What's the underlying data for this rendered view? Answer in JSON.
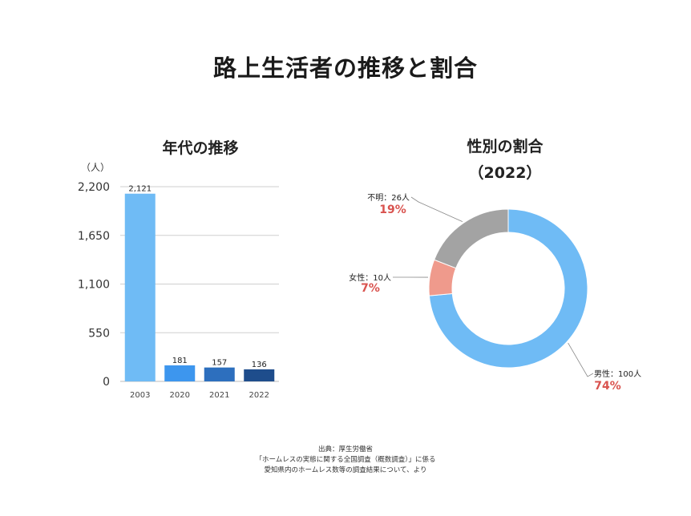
{
  "title": "路上生活者の推移と割合",
  "bar_chart": {
    "title": "年代の推移"
  },
  "pie_chart": {
    "title": "性別の割合",
    "subtitle": "（2022）"
  },
  "source": {
    "line1": "出典：厚生労働省",
    "line2": "「ホームレスの実態に関する全国調査（概数調査）」に係る",
    "line3": "愛知県内のホームレス数等の調査結果について、より"
  },
  "chart_data": [
    {
      "type": "bar",
      "title": "年代の推移",
      "ylabel": "（人）",
      "categories": [
        "2003",
        "2020",
        "2021",
        "2022"
      ],
      "values": [
        2121,
        181,
        157,
        136
      ],
      "value_labels": [
        "2,121",
        "181",
        "157",
        "136"
      ],
      "yticks": [
        0,
        550,
        1100,
        1650,
        2200
      ],
      "ytick_labels": [
        "0",
        "550",
        "1,100",
        "1,650",
        "2,200"
      ],
      "ylim": [
        0,
        2200
      ],
      "grid": true,
      "colors": [
        "#6fbbf5",
        "#3d96ee",
        "#2d6fbe",
        "#1e4d8c"
      ]
    },
    {
      "type": "pie",
      "title": "性別の割合",
      "subtitle": "（2022）",
      "slices": [
        {
          "label": "男性：100人",
          "value": 100,
          "percent": "74%",
          "color": "#6fbbf5"
        },
        {
          "label": "女性：10人",
          "value": 10,
          "percent": "7%",
          "color": "#ef9a8c"
        },
        {
          "label": "不明：26人",
          "value": 26,
          "percent": "19%",
          "color": "#a3a3a3"
        }
      ],
      "percent_color": "#d9534f"
    }
  ]
}
